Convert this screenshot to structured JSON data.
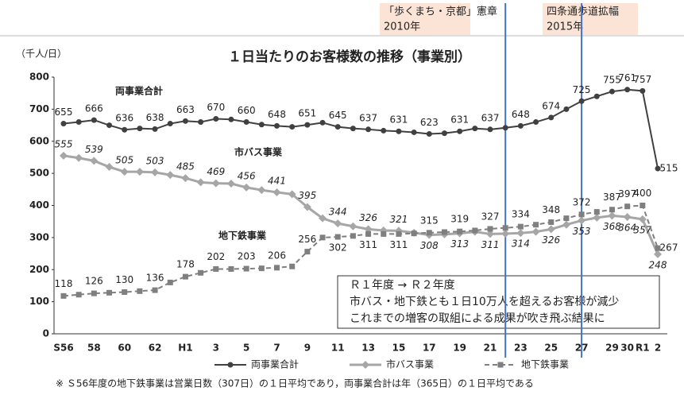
{
  "chart_data": {
    "type": "line",
    "title": "１日当たりのお客様数の推移（事業別）",
    "y_label": "（千人/日）",
    "categories": [
      "S56",
      null,
      "58",
      null,
      "60",
      null,
      "62",
      null,
      "H1",
      null,
      "3",
      null,
      "5",
      null,
      "7",
      null,
      "9",
      null,
      "11",
      null,
      "13",
      null,
      "15",
      null,
      "17",
      null,
      "19",
      null,
      "21",
      null,
      "23",
      null,
      "25",
      null,
      "27",
      null,
      "29",
      "30",
      "R1",
      "2"
    ],
    "series": [
      {
        "name": "両事業合計",
        "color": "#404040",
        "values": [
          655,
          660,
          666,
          650,
          636,
          640,
          638,
          655,
          663,
          660,
          670,
          668,
          660,
          652,
          648,
          645,
          651,
          658,
          645,
          640,
          637,
          633,
          631,
          628,
          623,
          625,
          631,
          640,
          637,
          642,
          648,
          660,
          674,
          700,
          725,
          740,
          755,
          761,
          757,
          515
        ]
      },
      {
        "name": "市バス事業",
        "color": "#a6a6a6",
        "values": [
          555,
          548,
          539,
          520,
          505,
          505,
          503,
          495,
          485,
          472,
          469,
          468,
          456,
          448,
          441,
          435,
          395,
          360,
          344,
          335,
          326,
          322,
          321,
          315,
          308,
          310,
          313,
          318,
          311,
          312,
          314,
          318,
          326,
          340,
          353,
          362,
          368,
          364,
          357,
          248
        ]
      },
      {
        "name": "地下鉄事業",
        "color": "#7f7f7f",
        "values": [
          118,
          122,
          126,
          128,
          130,
          133,
          136,
          160,
          178,
          190,
          202,
          202,
          203,
          204,
          206,
          210,
          256,
          300,
          302,
          305,
          311,
          311,
          311,
          313,
          315,
          317,
          319,
          322,
          327,
          330,
          334,
          340,
          348,
          360,
          372,
          380,
          387,
          397,
          400,
          267
        ]
      }
    ],
    "ylim": [
      0,
      800
    ],
    "yticks": [
      0,
      100,
      200,
      300,
      400,
      500,
      600,
      700,
      800
    ],
    "grid": false,
    "annotations": [
      [
        "「歩くまち・京都」憲章",
        "2010年"
      ],
      [
        "四条通歩道拡幅",
        "2015年"
      ]
    ],
    "note": [
      "Ｒ１年度 → Ｒ２年度",
      "市バス・地下鉄とも１日10万人を超えるお客様が減少",
      "これまでの増客の取組による成果が吹き飛ぶ結果に"
    ],
    "footnote": "※ Ｓ56年度の地下鉄事業は営業日数（307日）の１日平均であり，両事業合計は年（365日）の１日平均である"
  }
}
